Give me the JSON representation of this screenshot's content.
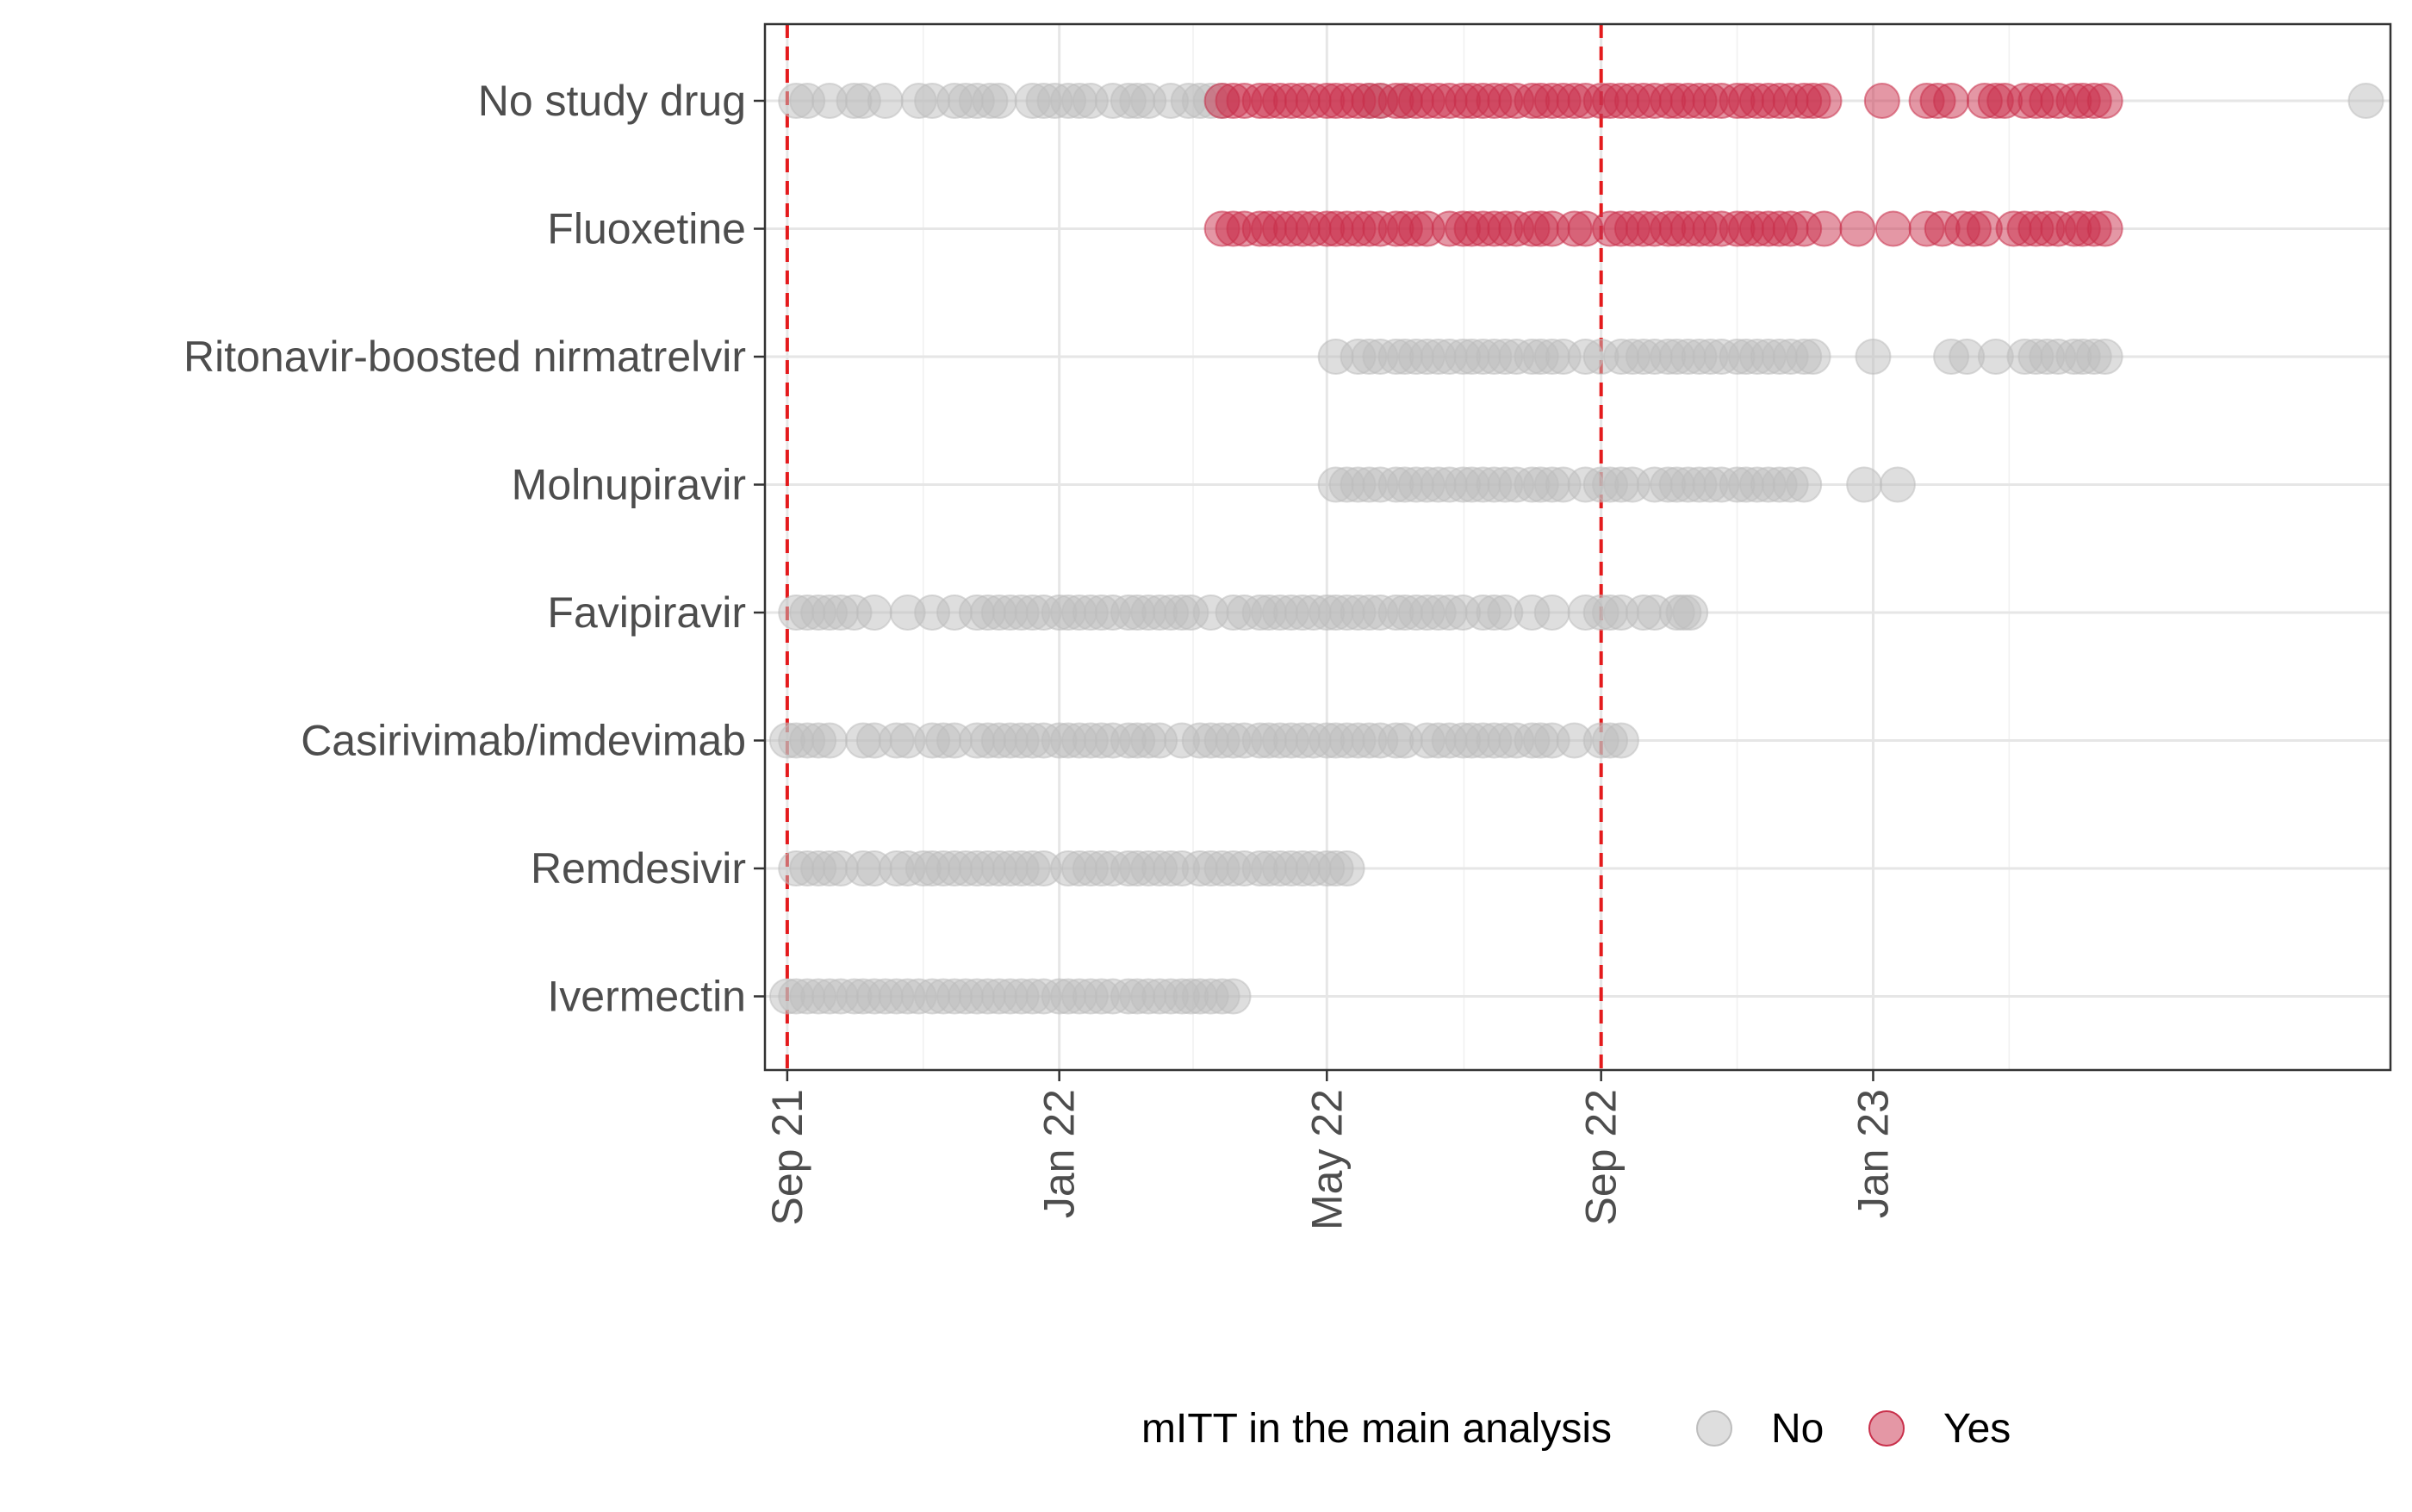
{
  "chart_data": {
    "type": "scatter",
    "title": "",
    "xlabel": "",
    "ylabel": "",
    "x_axis": {
      "type": "date",
      "range": [
        "2021-08-22",
        "2023-08-21"
      ],
      "tick_values": [
        "2021-09-01",
        "2022-01-01",
        "2022-05-01",
        "2022-09-01",
        "2023-01-01"
      ],
      "tick_labels": [
        "Sep 21",
        "Jan 22",
        "May 22",
        "Sep 22",
        "Jan 23"
      ]
    },
    "categories": [
      "No study drug",
      "Fluoxetine",
      "Ritonavir-boosted nirmatrelvir",
      "Molnupiravir",
      "Favipiravir",
      "Casirivimab/imdevimab",
      "Remdesivir",
      "Ivermectin"
    ],
    "reference_lines": [
      "2021-09-01",
      "2022-09-01"
    ],
    "reference_line_color": "#e41a1c",
    "grid": true,
    "legend": {
      "title": "mITT in the main analysis",
      "position": "bottom",
      "entries": [
        {
          "label": "No",
          "color": "#bdbdbd"
        },
        {
          "label": "Yes",
          "color": "#c9304b"
        }
      ]
    },
    "series": [
      {
        "name": "No",
        "color": "#bdbdbd",
        "points": [
          {
            "category": "No study drug",
            "dates": [
              "2021-09-05",
              "2021-09-10",
              "2021-09-20",
              "2021-10-01",
              "2021-10-05",
              "2021-10-15",
              "2021-10-30",
              "2021-11-05",
              "2021-11-15",
              "2021-11-20",
              "2021-11-25",
              "2021-12-01",
              "2021-12-05",
              "2021-12-20",
              "2021-12-25",
              "2021-12-30",
              "2022-01-05",
              "2022-01-10",
              "2022-01-15",
              "2022-01-25",
              "2022-02-01",
              "2022-02-05",
              "2022-02-10",
              "2022-02-20",
              "2022-02-28",
              "2022-03-05",
              "2022-03-10",
              "2022-03-15",
              "2022-05-20",
              "2022-05-25",
              "2022-06-05",
              "2023-08-10"
            ]
          },
          {
            "category": "Ritonavir-boosted nirmatrelvir",
            "dates": [
              "2022-05-05",
              "2022-05-15",
              "2022-05-20",
              "2022-05-25",
              "2022-06-01",
              "2022-06-05",
              "2022-06-10",
              "2022-06-15",
              "2022-06-20",
              "2022-06-25",
              "2022-07-01",
              "2022-07-05",
              "2022-07-10",
              "2022-07-15",
              "2022-07-20",
              "2022-07-25",
              "2022-08-01",
              "2022-08-05",
              "2022-08-10",
              "2022-08-15",
              "2022-08-25",
              "2022-09-01",
              "2022-09-10",
              "2022-09-15",
              "2022-09-20",
              "2022-09-25",
              "2022-10-01",
              "2022-10-05",
              "2022-10-10",
              "2022-10-15",
              "2022-10-20",
              "2022-10-25",
              "2022-11-01",
              "2022-11-05",
              "2022-11-10",
              "2022-11-15",
              "2022-11-20",
              "2022-11-25",
              "2022-12-01",
              "2022-12-05",
              "2023-01-01",
              "2023-02-05",
              "2023-02-12",
              "2023-02-25",
              "2023-03-10",
              "2023-03-15",
              "2023-03-20",
              "2023-03-25",
              "2023-04-01",
              "2023-04-05",
              "2023-04-10",
              "2023-04-15"
            ]
          },
          {
            "category": "Molnupiravir",
            "dates": [
              "2022-05-05",
              "2022-05-10",
              "2022-05-15",
              "2022-05-20",
              "2022-05-25",
              "2022-06-01",
              "2022-06-05",
              "2022-06-10",
              "2022-06-15",
              "2022-06-20",
              "2022-06-25",
              "2022-07-01",
              "2022-07-05",
              "2022-07-10",
              "2022-07-15",
              "2022-07-20",
              "2022-07-25",
              "2022-08-01",
              "2022-08-05",
              "2022-08-10",
              "2022-08-15",
              "2022-08-25",
              "2022-09-01",
              "2022-09-05",
              "2022-09-10",
              "2022-09-15",
              "2022-09-25",
              "2022-10-01",
              "2022-10-05",
              "2022-10-10",
              "2022-10-15",
              "2022-10-20",
              "2022-10-25",
              "2022-11-01",
              "2022-11-05",
              "2022-11-10",
              "2022-11-15",
              "2022-11-20",
              "2022-11-25",
              "2022-12-01",
              "2022-12-28",
              "2023-01-12"
            ]
          },
          {
            "category": "Favipiravir",
            "dates": [
              "2021-09-05",
              "2021-09-10",
              "2021-09-15",
              "2021-09-20",
              "2021-09-25",
              "2021-10-01",
              "2021-10-10",
              "2021-10-25",
              "2021-11-05",
              "2021-11-15",
              "2021-11-25",
              "2021-11-30",
              "2021-12-05",
              "2021-12-10",
              "2021-12-15",
              "2021-12-20",
              "2021-12-25",
              "2022-01-01",
              "2022-01-05",
              "2022-01-10",
              "2022-01-15",
              "2022-01-20",
              "2022-01-25",
              "2022-02-01",
              "2022-02-05",
              "2022-02-10",
              "2022-02-15",
              "2022-02-20",
              "2022-02-25",
              "2022-03-01",
              "2022-03-10",
              "2022-03-20",
              "2022-03-25",
              "2022-04-01",
              "2022-04-05",
              "2022-04-10",
              "2022-04-15",
              "2022-04-20",
              "2022-04-25",
              "2022-05-01",
              "2022-05-05",
              "2022-05-10",
              "2022-05-15",
              "2022-05-20",
              "2022-05-25",
              "2022-06-01",
              "2022-06-05",
              "2022-06-10",
              "2022-06-15",
              "2022-06-20",
              "2022-06-25",
              "2022-07-01",
              "2022-07-10",
              "2022-07-15",
              "2022-07-20",
              "2022-08-01",
              "2022-08-10",
              "2022-08-25",
              "2022-09-01",
              "2022-09-05",
              "2022-09-10",
              "2022-09-20",
              "2022-09-25",
              "2022-10-05",
              "2022-10-08",
              "2022-10-11"
            ]
          },
          {
            "category": "Casirivimab/imdevimab",
            "dates": [
              "2021-09-01",
              "2021-09-05",
              "2021-09-10",
              "2021-09-15",
              "2021-09-20",
              "2021-10-05",
              "2021-10-10",
              "2021-10-20",
              "2021-10-25",
              "2021-11-05",
              "2021-11-10",
              "2021-11-15",
              "2021-11-25",
              "2021-11-30",
              "2021-12-05",
              "2021-12-10",
              "2021-12-15",
              "2021-12-20",
              "2021-12-25",
              "2022-01-01",
              "2022-01-05",
              "2022-01-10",
              "2022-01-15",
              "2022-01-20",
              "2022-01-25",
              "2022-02-01",
              "2022-02-05",
              "2022-02-10",
              "2022-02-15",
              "2022-02-25",
              "2022-03-05",
              "2022-03-10",
              "2022-03-15",
              "2022-03-20",
              "2022-03-25",
              "2022-04-01",
              "2022-04-05",
              "2022-04-10",
              "2022-04-15",
              "2022-04-20",
              "2022-04-25",
              "2022-05-01",
              "2022-05-05",
              "2022-05-10",
              "2022-05-15",
              "2022-05-20",
              "2022-05-25",
              "2022-06-01",
              "2022-06-05",
              "2022-06-15",
              "2022-06-20",
              "2022-06-25",
              "2022-07-01",
              "2022-07-05",
              "2022-07-10",
              "2022-07-15",
              "2022-07-20",
              "2022-07-25",
              "2022-08-01",
              "2022-08-05",
              "2022-08-10",
              "2022-08-20",
              "2022-09-01",
              "2022-09-05",
              "2022-09-10"
            ]
          },
          {
            "category": "Remdesivir",
            "dates": [
              "2021-09-05",
              "2021-09-10",
              "2021-09-15",
              "2021-09-20",
              "2021-09-25",
              "2021-10-05",
              "2021-10-10",
              "2021-10-20",
              "2021-10-25",
              "2021-11-01",
              "2021-11-05",
              "2021-11-10",
              "2021-11-15",
              "2021-11-20",
              "2021-11-25",
              "2021-11-30",
              "2021-12-05",
              "2021-12-10",
              "2021-12-15",
              "2021-12-20",
              "2021-12-25",
              "2022-01-05",
              "2022-01-10",
              "2022-01-15",
              "2022-01-20",
              "2022-01-25",
              "2022-02-01",
              "2022-02-05",
              "2022-02-10",
              "2022-02-15",
              "2022-02-20",
              "2022-02-25",
              "2022-03-05",
              "2022-03-10",
              "2022-03-15",
              "2022-03-20",
              "2022-03-25",
              "2022-04-01",
              "2022-04-05",
              "2022-04-10",
              "2022-04-15",
              "2022-04-20",
              "2022-04-25",
              "2022-05-01",
              "2022-05-05",
              "2022-05-10"
            ]
          },
          {
            "category": "Ivermectin",
            "dates": [
              "2021-09-01",
              "2021-09-05",
              "2021-09-10",
              "2021-09-15",
              "2021-09-20",
              "2021-09-25",
              "2021-10-01",
              "2021-10-05",
              "2021-10-10",
              "2021-10-15",
              "2021-10-20",
              "2021-10-25",
              "2021-10-30",
              "2021-11-05",
              "2021-11-10",
              "2021-11-15",
              "2021-11-20",
              "2021-11-25",
              "2021-11-30",
              "2021-12-05",
              "2021-12-10",
              "2021-12-15",
              "2021-12-20",
              "2021-12-25",
              "2022-01-01",
              "2022-01-05",
              "2022-01-10",
              "2022-01-15",
              "2022-01-20",
              "2022-01-25",
              "2022-02-01",
              "2022-02-05",
              "2022-02-10",
              "2022-02-15",
              "2022-02-20",
              "2022-02-25",
              "2022-03-01",
              "2022-03-05",
              "2022-03-10",
              "2022-03-15",
              "2022-03-20"
            ]
          }
        ]
      },
      {
        "name": "Yes",
        "color": "#c9304b",
        "points": [
          {
            "category": "No study drug",
            "dates": [
              "2022-03-15",
              "2022-03-20",
              "2022-03-25",
              "2022-04-01",
              "2022-04-05",
              "2022-04-10",
              "2022-04-15",
              "2022-04-20",
              "2022-04-25",
              "2022-05-01",
              "2022-05-05",
              "2022-05-10",
              "2022-05-15",
              "2022-05-20",
              "2022-05-25",
              "2022-06-01",
              "2022-06-05",
              "2022-06-10",
              "2022-06-15",
              "2022-06-20",
              "2022-06-25",
              "2022-07-01",
              "2022-07-05",
              "2022-07-10",
              "2022-07-15",
              "2022-07-20",
              "2022-07-25",
              "2022-08-01",
              "2022-08-05",
              "2022-08-10",
              "2022-08-15",
              "2022-08-20",
              "2022-08-25",
              "2022-09-01",
              "2022-09-05",
              "2022-09-10",
              "2022-09-15",
              "2022-09-20",
              "2022-09-25",
              "2022-10-01",
              "2022-10-05",
              "2022-10-10",
              "2022-10-15",
              "2022-10-20",
              "2022-10-25",
              "2022-11-01",
              "2022-11-05",
              "2022-11-10",
              "2022-11-15",
              "2022-11-20",
              "2022-11-25",
              "2022-12-01",
              "2022-12-05",
              "2022-12-10",
              "2023-01-05",
              "2023-01-25",
              "2023-01-30",
              "2023-02-05",
              "2023-02-20",
              "2023-02-25",
              "2023-03-01",
              "2023-03-10",
              "2023-03-15",
              "2023-03-20",
              "2023-03-25",
              "2023-04-01",
              "2023-04-05",
              "2023-04-10",
              "2023-04-15"
            ]
          },
          {
            "category": "Fluoxetine",
            "dates": [
              "2022-03-15",
              "2022-03-20",
              "2022-03-25",
              "2022-04-01",
              "2022-04-05",
              "2022-04-10",
              "2022-04-15",
              "2022-04-20",
              "2022-04-25",
              "2022-05-01",
              "2022-05-05",
              "2022-05-10",
              "2022-05-15",
              "2022-05-20",
              "2022-05-25",
              "2022-06-01",
              "2022-06-05",
              "2022-06-10",
              "2022-06-15",
              "2022-06-25",
              "2022-07-01",
              "2022-07-05",
              "2022-07-10",
              "2022-07-15",
              "2022-07-20",
              "2022-07-25",
              "2022-08-01",
              "2022-08-05",
              "2022-08-10",
              "2022-08-20",
              "2022-08-25",
              "2022-09-05",
              "2022-09-10",
              "2022-09-15",
              "2022-09-20",
              "2022-09-25",
              "2022-10-01",
              "2022-10-05",
              "2022-10-10",
              "2022-10-15",
              "2022-10-20",
              "2022-10-25",
              "2022-11-01",
              "2022-11-05",
              "2022-11-10",
              "2022-11-15",
              "2022-11-20",
              "2022-11-25",
              "2022-12-01",
              "2022-12-10",
              "2022-12-25",
              "2023-01-10",
              "2023-01-25",
              "2023-02-01",
              "2023-02-10",
              "2023-02-15",
              "2023-02-20",
              "2023-03-05",
              "2023-03-10",
              "2023-03-15",
              "2023-03-20",
              "2023-03-25",
              "2023-04-01",
              "2023-04-05",
              "2023-04-10",
              "2023-04-15"
            ]
          }
        ]
      }
    ]
  }
}
